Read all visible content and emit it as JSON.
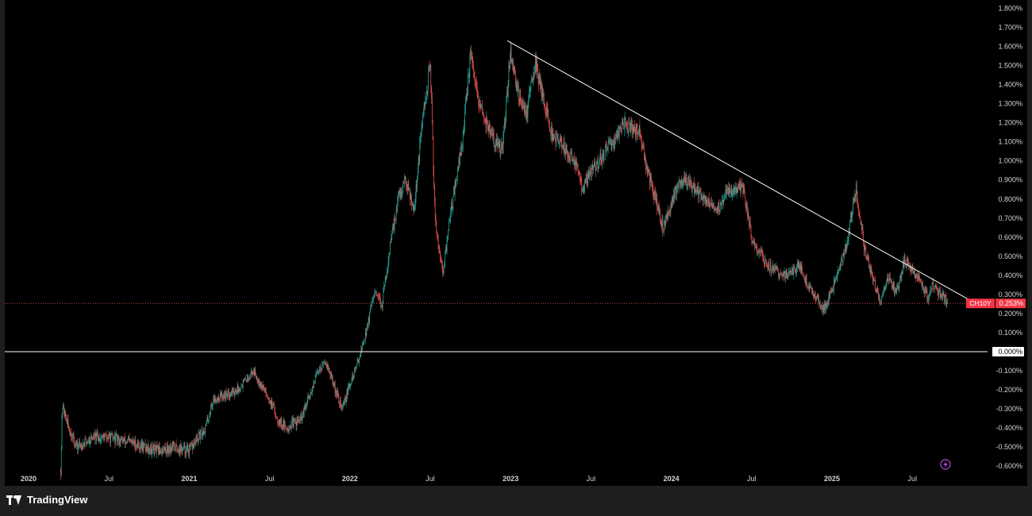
{
  "brand": {
    "name": "TradingView",
    "icon": "tradingview-logo-icon"
  },
  "chart_data": {
    "type": "candlestick",
    "symbol": "CH10Y",
    "last_value_label": "0.253%",
    "zero_label": "0.000%",
    "ylim": [
      -0.66,
      1.84
    ],
    "y_ticks": [
      "1.800%",
      "1.700%",
      "1.600%",
      "1.500%",
      "1.400%",
      "1.300%",
      "1.200%",
      "1.100%",
      "1.000%",
      "0.900%",
      "0.800%",
      "0.700%",
      "0.600%",
      "0.500%",
      "0.400%",
      "0.300%",
      "0.200%",
      "0.100%",
      "0.000%",
      "-0.100%",
      "-0.200%",
      "-0.300%",
      "-0.400%",
      "-0.500%",
      "-0.600%"
    ],
    "y_tick_values": [
      1.8,
      1.7,
      1.6,
      1.5,
      1.4,
      1.3,
      1.2,
      1.1,
      1.0,
      0.9,
      0.8,
      0.7,
      0.6,
      0.5,
      0.4,
      0.3,
      0.2,
      0.1,
      0.0,
      -0.1,
      -0.2,
      -0.3,
      -0.4,
      -0.5,
      -0.6
    ],
    "x_range": [
      2020.0,
      2025.95
    ],
    "x_ticks": [
      {
        "label": "2020",
        "t": 2020.0,
        "year": true
      },
      {
        "label": "Jul",
        "t": 2020.5,
        "year": false
      },
      {
        "label": "2021",
        "t": 2021.0,
        "year": true
      },
      {
        "label": "Jul",
        "t": 2021.5,
        "year": false
      },
      {
        "label": "2022",
        "t": 2022.0,
        "year": true
      },
      {
        "label": "Jul",
        "t": 2022.5,
        "year": false
      },
      {
        "label": "2023",
        "t": 2023.0,
        "year": true
      },
      {
        "label": "Jul",
        "t": 2023.5,
        "year": false
      },
      {
        "label": "2024",
        "t": 2024.0,
        "year": true
      },
      {
        "label": "Jul",
        "t": 2024.5,
        "year": false
      },
      {
        "label": "2025",
        "t": 2025.0,
        "year": true
      },
      {
        "label": "Jul",
        "t": 2025.5,
        "year": false
      }
    ],
    "price_path": [
      [
        2020.2,
        -0.62
      ],
      [
        2020.21,
        -0.28
      ],
      [
        2020.25,
        -0.4
      ],
      [
        2020.3,
        -0.5
      ],
      [
        2020.4,
        -0.45
      ],
      [
        2020.5,
        -0.45
      ],
      [
        2020.65,
        -0.48
      ],
      [
        2020.8,
        -0.52
      ],
      [
        2020.9,
        -0.5
      ],
      [
        2021.0,
        -0.52
      ],
      [
        2021.1,
        -0.4
      ],
      [
        2021.15,
        -0.25
      ],
      [
        2021.3,
        -0.2
      ],
      [
        2021.4,
        -0.1
      ],
      [
        2021.5,
        -0.25
      ],
      [
        2021.55,
        -0.35
      ],
      [
        2021.6,
        -0.4
      ],
      [
        2021.7,
        -0.35
      ],
      [
        2021.8,
        -0.1
      ],
      [
        2021.85,
        -0.05
      ],
      [
        2021.95,
        -0.3
      ],
      [
        2022.05,
        -0.05
      ],
      [
        2022.1,
        0.1
      ],
      [
        2022.15,
        0.3
      ],
      [
        2022.2,
        0.25
      ],
      [
        2022.25,
        0.55
      ],
      [
        2022.3,
        0.8
      ],
      [
        2022.35,
        0.9
      ],
      [
        2022.4,
        0.75
      ],
      [
        2022.45,
        1.2
      ],
      [
        2022.5,
        1.5
      ],
      [
        2022.53,
        0.7
      ],
      [
        2022.58,
        0.4
      ],
      [
        2022.62,
        0.7
      ],
      [
        2022.7,
        1.1
      ],
      [
        2022.75,
        1.55
      ],
      [
        2022.8,
        1.3
      ],
      [
        2022.9,
        1.1
      ],
      [
        2022.95,
        1.05
      ],
      [
        2023.0,
        1.58
      ],
      [
        2023.05,
        1.35
      ],
      [
        2023.1,
        1.25
      ],
      [
        2023.15,
        1.52
      ],
      [
        2023.2,
        1.35
      ],
      [
        2023.25,
        1.15
      ],
      [
        2023.3,
        1.1
      ],
      [
        2023.4,
        1.0
      ],
      [
        2023.45,
        0.85
      ],
      [
        2023.5,
        0.95
      ],
      [
        2023.6,
        1.05
      ],
      [
        2023.7,
        1.2
      ],
      [
        2023.8,
        1.15
      ],
      [
        2023.85,
        0.95
      ],
      [
        2023.95,
        0.65
      ],
      [
        2024.05,
        0.9
      ],
      [
        2024.1,
        0.9
      ],
      [
        2024.2,
        0.8
      ],
      [
        2024.3,
        0.75
      ],
      [
        2024.35,
        0.85
      ],
      [
        2024.45,
        0.85
      ],
      [
        2024.5,
        0.6
      ],
      [
        2024.6,
        0.45
      ],
      [
        2024.7,
        0.4
      ],
      [
        2024.8,
        0.45
      ],
      [
        2024.85,
        0.35
      ],
      [
        2024.95,
        0.22
      ],
      [
        2025.0,
        0.32
      ],
      [
        2025.05,
        0.45
      ],
      [
        2025.1,
        0.6
      ],
      [
        2025.15,
        0.85
      ],
      [
        2025.2,
        0.55
      ],
      [
        2025.25,
        0.4
      ],
      [
        2025.3,
        0.25
      ],
      [
        2025.35,
        0.4
      ],
      [
        2025.4,
        0.3
      ],
      [
        2025.45,
        0.48
      ],
      [
        2025.5,
        0.42
      ],
      [
        2025.55,
        0.38
      ],
      [
        2025.6,
        0.28
      ],
      [
        2025.62,
        0.35
      ],
      [
        2025.68,
        0.3
      ],
      [
        2025.72,
        0.253
      ]
    ],
    "lines": [
      {
        "name": "",
        "type": "trendline",
        "from": [
          2022.98,
          1.63
        ],
        "to": [
          2025.88,
          0.26
        ]
      },
      {
        "name": "",
        "type": "horizontal",
        "value": 0.0
      },
      {
        "name": "",
        "type": "last-value",
        "value": 0.253
      }
    ],
    "colors": {
      "up": "#26a69a",
      "down": "#ef5350",
      "background": "#000000",
      "grid": "#000000",
      "axis_text": "#d1d4dc",
      "trendline": "#ffffff",
      "last_value": "#f23645",
      "price_line": "#ef5350"
    },
    "alert_icon": "lightning-bolt-icon"
  }
}
